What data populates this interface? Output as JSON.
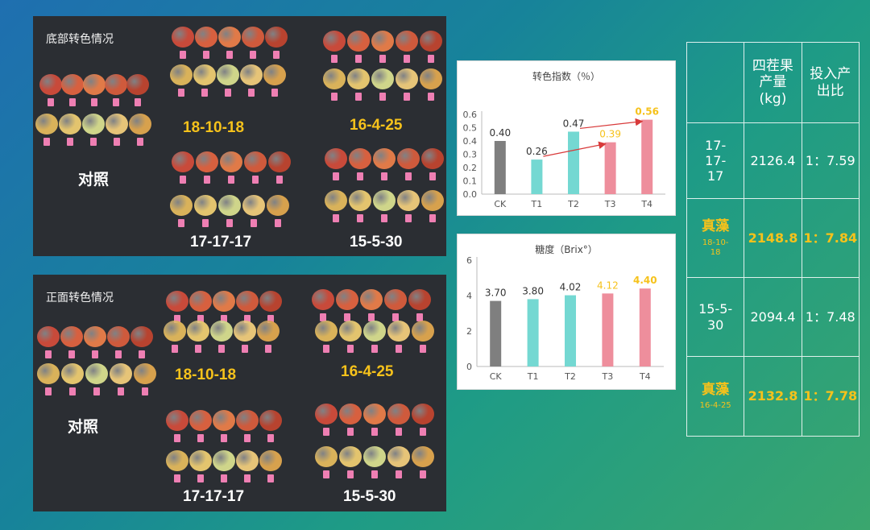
{
  "photos": {
    "top": {
      "caption": "底部转色情况",
      "labels": {
        "control": "对照",
        "a": "18-10-18",
        "b": "16-4-25",
        "c": "17-17-17",
        "d": "15-5-30"
      }
    },
    "bottom": {
      "caption": "正面转色情况",
      "labels": {
        "control": "对照",
        "a": "18-10-18",
        "b": "16-4-25",
        "c": "17-17-17",
        "d": "15-5-30"
      }
    }
  },
  "colors": {
    "ck": "#7f7f7f",
    "t12": "#74d8d2",
    "t34": "#ee8e9c",
    "highlight": "#f6c21b",
    "arrow": "#d83a3a"
  },
  "chart_data": [
    {
      "type": "bar",
      "title": "转色指数（％）",
      "categories": [
        "CK",
        "T1",
        "T2",
        "T3",
        "T4"
      ],
      "values": [
        0.4,
        0.26,
        0.47,
        0.39,
        0.56
      ],
      "value_labels": [
        "0.40",
        "0.26",
        "0.47",
        "0.39",
        "0.56"
      ],
      "ylim": [
        0,
        0.6
      ],
      "yticks": [
        "0.0",
        "0.1",
        "0.2",
        "0.3",
        "0.4",
        "0.5",
        "0.6"
      ],
      "highlighted_labels": [
        3,
        4
      ],
      "arrows": [
        [
          1,
          3
        ],
        [
          2,
          4
        ]
      ]
    },
    {
      "type": "bar",
      "title": "糖度（Brix°）",
      "categories": [
        "CK",
        "T1",
        "T2",
        "T3",
        "T4"
      ],
      "values": [
        3.7,
        3.8,
        4.02,
        4.12,
        4.4
      ],
      "value_labels": [
        "3.70",
        "3.80",
        "4.02",
        "4.12",
        "4.40"
      ],
      "ylim": [
        0,
        6
      ],
      "yticks": [
        "0",
        "2",
        "4",
        "6"
      ],
      "highlighted_labels": [
        3,
        4
      ]
    }
  ],
  "table": {
    "headers": [
      "",
      "四茬果产量(kg)",
      "投入产出比"
    ],
    "rows": [
      {
        "name": "17-17-17",
        "sub": "",
        "yield": "2126.4",
        "ratio": "1：7.59",
        "highlight": false
      },
      {
        "name": "真藻",
        "sub": "18-10-18",
        "yield": "2148.8",
        "ratio": "1：7.84",
        "highlight": true
      },
      {
        "name": "15-5-30",
        "sub": "",
        "yield": "2094.4",
        "ratio": "1：7.48",
        "highlight": false
      },
      {
        "name": "真藻",
        "sub": "16-4-25",
        "yield": "2132.8",
        "ratio": "1：7.78",
        "highlight": true
      }
    ]
  }
}
